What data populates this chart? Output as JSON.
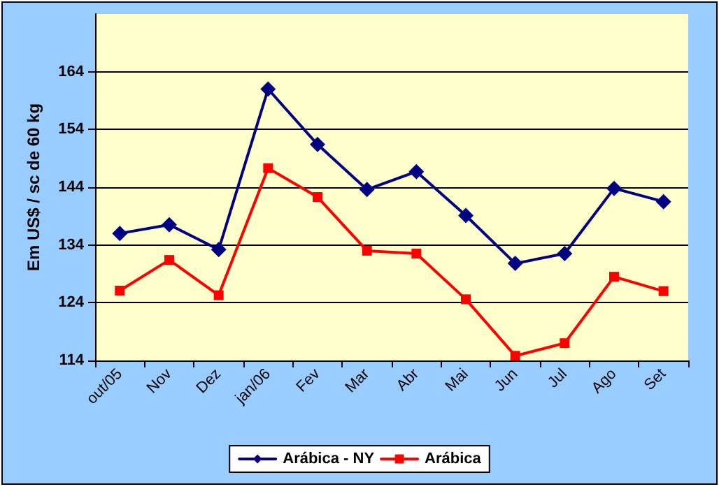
{
  "chart_data": {
    "type": "line",
    "ylabel": "Em US$ / sc de 60 kg",
    "categories": [
      "out/05",
      "Nov",
      "Dez",
      "jan/06",
      "Fev",
      "Mar",
      "Abr",
      "Mai",
      "Jun",
      "Jul",
      "Ago",
      "Set"
    ],
    "series": [
      {
        "name": "Arábica - NY",
        "color": "#000080",
        "marker": "diamond",
        "values": [
          136.0,
          137.5,
          133.2,
          161.0,
          151.4,
          143.6,
          146.7,
          139.1,
          130.8,
          132.5,
          143.8,
          141.5
        ]
      },
      {
        "name": "Arábica",
        "color": "#ff0000",
        "marker": "square",
        "values": [
          126.1,
          131.4,
          125.3,
          147.3,
          142.3,
          133.0,
          132.5,
          124.6,
          114.8,
          117.0,
          128.5,
          126.0
        ]
      }
    ],
    "ylim": [
      114,
      174
    ],
    "yticks": [
      114,
      124,
      134,
      144,
      154,
      164
    ],
    "grid": "y",
    "legend": "bottom",
    "line_style": "solid"
  }
}
